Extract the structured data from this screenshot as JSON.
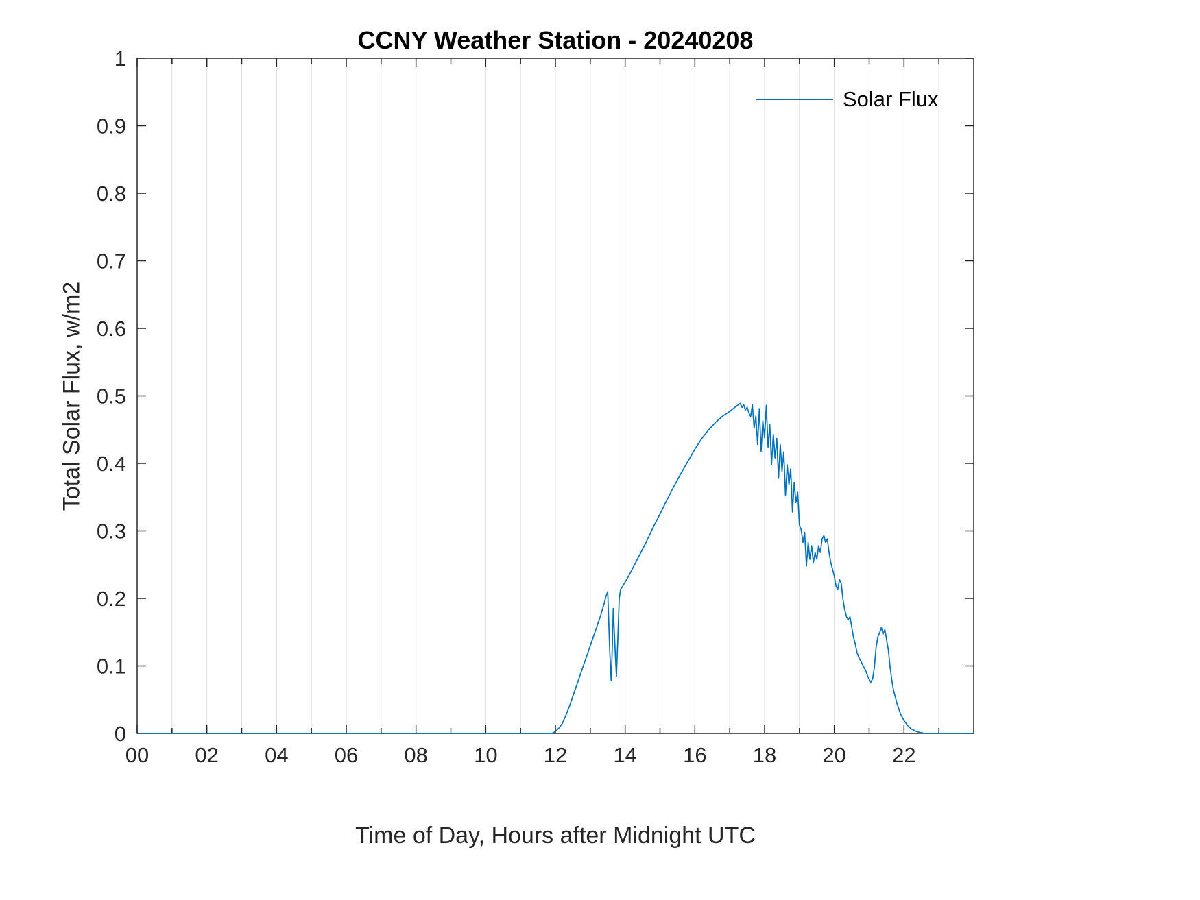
{
  "figure": {
    "title": "CCNY Weather Station - 20240208",
    "xlabel": "Time of Day, Hours after Midnight UTC",
    "ylabel": "Total Solar Flux, w/m2",
    "legend": {
      "position": "top-right-inside",
      "items": [
        {
          "label": "Solar Flux",
          "color": "#0072BD"
        }
      ]
    }
  },
  "chart_data": {
    "type": "line",
    "title": "CCNY Weather Station - 20240208",
    "xlabel": "Time of Day, Hours after Midnight UTC",
    "ylabel": "Total Solar Flux, w/m2",
    "xlim": [
      0,
      24
    ],
    "ylim": [
      0,
      1
    ],
    "x_major_ticks": [
      0,
      2,
      4,
      6,
      8,
      10,
      12,
      14,
      16,
      18,
      20,
      22
    ],
    "x_major_tick_labels": [
      "00",
      "02",
      "04",
      "06",
      "08",
      "10",
      "12",
      "14",
      "16",
      "18",
      "20",
      "22"
    ],
    "x_minor_tick_step": 1,
    "y_ticks": [
      0,
      0.1,
      0.2,
      0.3,
      0.4,
      0.5,
      0.6,
      0.7,
      0.8,
      0.9,
      1
    ],
    "y_tick_labels": [
      "0",
      "0.1",
      "0.2",
      "0.3",
      "0.4",
      "0.5",
      "0.6",
      "0.7",
      "0.8",
      "0.9",
      "1"
    ],
    "grid": "vertical-only",
    "grid_color": "#dcdcdc",
    "axis_color": "#262626",
    "legend_position": "top-right-inside",
    "series": [
      {
        "name": "Solar Flux",
        "color": "#0072BD",
        "points": [
          [
            0,
            0
          ],
          [
            1,
            0
          ],
          [
            2,
            0
          ],
          [
            3,
            0
          ],
          [
            4,
            0
          ],
          [
            5,
            0
          ],
          [
            6,
            0
          ],
          [
            7,
            0
          ],
          [
            8,
            0
          ],
          [
            9,
            0
          ],
          [
            10,
            0
          ],
          [
            11,
            0
          ],
          [
            11.5,
            0
          ],
          [
            11.9,
            0
          ],
          [
            12,
            0.003
          ],
          [
            12.1,
            0.008
          ],
          [
            12.2,
            0.015
          ],
          [
            12.3,
            0.027
          ],
          [
            12.4,
            0.04
          ],
          [
            12.5,
            0.055
          ],
          [
            12.6,
            0.07
          ],
          [
            12.7,
            0.085
          ],
          [
            12.8,
            0.1
          ],
          [
            12.9,
            0.115
          ],
          [
            13,
            0.13
          ],
          [
            13.1,
            0.145
          ],
          [
            13.2,
            0.16
          ],
          [
            13.3,
            0.175
          ],
          [
            13.4,
            0.193
          ],
          [
            13.45,
            0.203
          ],
          [
            13.5,
            0.21
          ],
          [
            13.53,
            0.165
          ],
          [
            13.56,
            0.12
          ],
          [
            13.6,
            0.078
          ],
          [
            13.63,
            0.125
          ],
          [
            13.66,
            0.185
          ],
          [
            13.69,
            0.15
          ],
          [
            13.72,
            0.115
          ],
          [
            13.75,
            0.085
          ],
          [
            13.79,
            0.14
          ],
          [
            13.83,
            0.2
          ],
          [
            13.87,
            0.213
          ],
          [
            13.95,
            0.22
          ],
          [
            14.1,
            0.233
          ],
          [
            14.25,
            0.248
          ],
          [
            14.4,
            0.263
          ],
          [
            14.6,
            0.283
          ],
          [
            14.8,
            0.305
          ],
          [
            15,
            0.325
          ],
          [
            15.2,
            0.346
          ],
          [
            15.4,
            0.366
          ],
          [
            15.6,
            0.385
          ],
          [
            15.8,
            0.403
          ],
          [
            16,
            0.421
          ],
          [
            16.2,
            0.437
          ],
          [
            16.4,
            0.45
          ],
          [
            16.6,
            0.461
          ],
          [
            16.8,
            0.47
          ],
          [
            17,
            0.477
          ],
          [
            17.1,
            0.481
          ],
          [
            17.2,
            0.485
          ],
          [
            17.3,
            0.489
          ],
          [
            17.35,
            0.483
          ],
          [
            17.4,
            0.487
          ],
          [
            17.45,
            0.479
          ],
          [
            17.5,
            0.483
          ],
          [
            17.55,
            0.475
          ],
          [
            17.6,
            0.469
          ],
          [
            17.65,
            0.487
          ],
          [
            17.7,
            0.452
          ],
          [
            17.75,
            0.47
          ],
          [
            17.8,
            0.428
          ],
          [
            17.85,
            0.481
          ],
          [
            17.9,
            0.418
          ],
          [
            17.95,
            0.463
          ],
          [
            18,
            0.438
          ],
          [
            18.05,
            0.486
          ],
          [
            18.1,
            0.424
          ],
          [
            18.15,
            0.458
          ],
          [
            18.2,
            0.398
          ],
          [
            18.25,
            0.443
          ],
          [
            18.3,
            0.408
          ],
          [
            18.35,
            0.437
          ],
          [
            18.4,
            0.378
          ],
          [
            18.45,
            0.428
          ],
          [
            18.5,
            0.388
          ],
          [
            18.55,
            0.417
          ],
          [
            18.6,
            0.352
          ],
          [
            18.65,
            0.398
          ],
          [
            18.7,
            0.368
          ],
          [
            18.75,
            0.392
          ],
          [
            18.8,
            0.328
          ],
          [
            18.85,
            0.372
          ],
          [
            18.9,
            0.342
          ],
          [
            18.95,
            0.357
          ],
          [
            19,
            0.308
          ],
          [
            19.05,
            0.302
          ],
          [
            19.1,
            0.283
          ],
          [
            19.15,
            0.298
          ],
          [
            19.2,
            0.248
          ],
          [
            19.25,
            0.283
          ],
          [
            19.3,
            0.258
          ],
          [
            19.35,
            0.278
          ],
          [
            19.4,
            0.253
          ],
          [
            19.45,
            0.268
          ],
          [
            19.5,
            0.258
          ],
          [
            19.55,
            0.278
          ],
          [
            19.6,
            0.268
          ],
          [
            19.65,
            0.288
          ],
          [
            19.7,
            0.293
          ],
          [
            19.75,
            0.283
          ],
          [
            19.8,
            0.288
          ],
          [
            19.85,
            0.268
          ],
          [
            19.9,
            0.253
          ],
          [
            19.95,
            0.243
          ],
          [
            20,
            0.233
          ],
          [
            20.05,
            0.218
          ],
          [
            20.1,
            0.213
          ],
          [
            20.15,
            0.228
          ],
          [
            20.2,
            0.222
          ],
          [
            20.25,
            0.198
          ],
          [
            20.3,
            0.183
          ],
          [
            20.35,
            0.173
          ],
          [
            20.4,
            0.168
          ],
          [
            20.45,
            0.173
          ],
          [
            20.5,
            0.158
          ],
          [
            20.55,
            0.143
          ],
          [
            20.6,
            0.133
          ],
          [
            20.65,
            0.12
          ],
          [
            20.7,
            0.113
          ],
          [
            20.75,
            0.108
          ],
          [
            20.8,
            0.103
          ],
          [
            20.85,
            0.098
          ],
          [
            20.9,
            0.093
          ],
          [
            20.95,
            0.086
          ],
          [
            21,
            0.08
          ],
          [
            21.05,
            0.076
          ],
          [
            21.1,
            0.081
          ],
          [
            21.15,
            0.098
          ],
          [
            21.2,
            0.128
          ],
          [
            21.25,
            0.143
          ],
          [
            21.3,
            0.149
          ],
          [
            21.35,
            0.157
          ],
          [
            21.4,
            0.147
          ],
          [
            21.45,
            0.154
          ],
          [
            21.5,
            0.139
          ],
          [
            21.55,
            0.124
          ],
          [
            21.6,
            0.099
          ],
          [
            21.65,
            0.079
          ],
          [
            21.7,
            0.064
          ],
          [
            21.8,
            0.044
          ],
          [
            21.9,
            0.029
          ],
          [
            22,
            0.019
          ],
          [
            22.1,
            0.012
          ],
          [
            22.2,
            0.007
          ],
          [
            22.35,
            0.003
          ],
          [
            22.5,
            0.001
          ],
          [
            22.6,
            0
          ],
          [
            23,
            0
          ],
          [
            23.5,
            0
          ],
          [
            23.95,
            0
          ]
        ]
      }
    ]
  }
}
